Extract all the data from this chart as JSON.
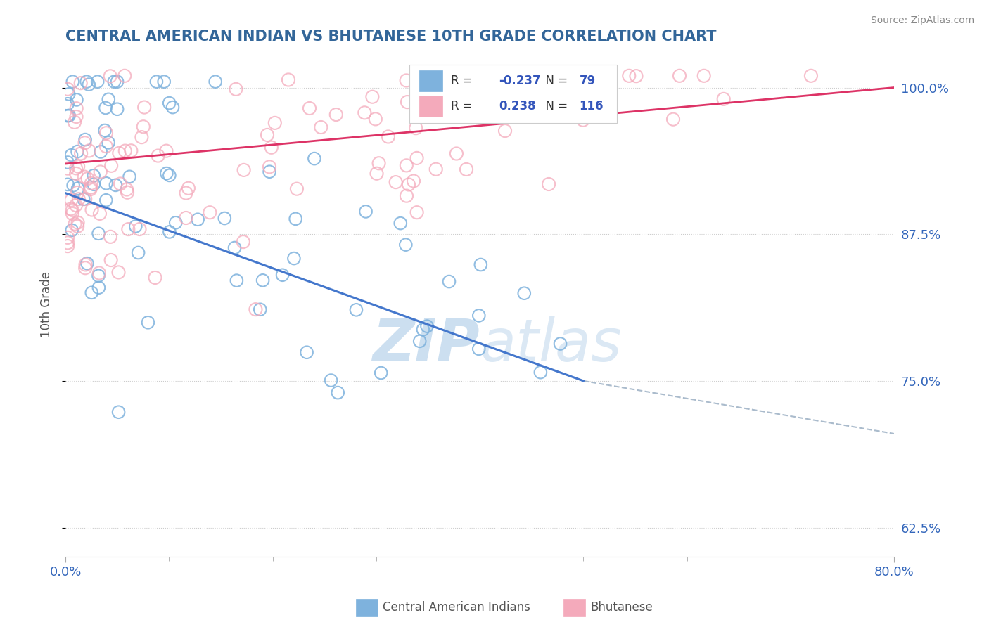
{
  "title": "CENTRAL AMERICAN INDIAN VS BHUTANESE 10TH GRADE CORRELATION CHART",
  "source": "Source: ZipAtlas.com",
  "ylabel": "10th Grade",
  "yticks": [
    62.5,
    75.0,
    87.5,
    100.0
  ],
  "ytick_labels": [
    "62.5%",
    "75.0%",
    "87.5%",
    "100.0%"
  ],
  "xlim": [
    0.0,
    80.0
  ],
  "ylim": [
    60.0,
    103.0
  ],
  "blue_R": -0.237,
  "blue_N": 79,
  "pink_R": 0.238,
  "pink_N": 116,
  "blue_color": "#7EB2DD",
  "blue_edge": "#5599CC",
  "pink_color": "#F4AABB",
  "pink_edge": "#E07090",
  "blue_trend": "#4477CC",
  "pink_trend": "#DD3366",
  "dash_color": "#AABBCC",
  "blue_label": "Central American Indians",
  "pink_label": "Bhutanese",
  "watermark_color": "#CCDFF0",
  "background_color": "#ffffff"
}
